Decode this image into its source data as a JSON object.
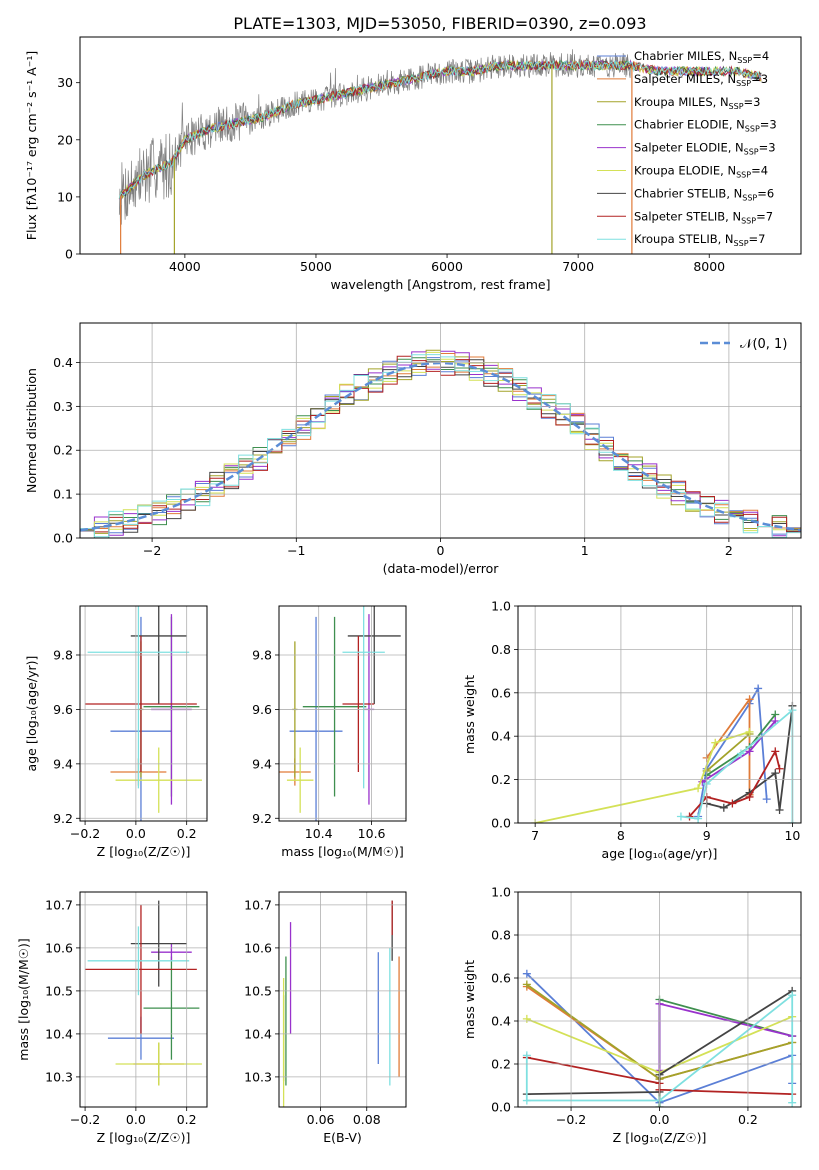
{
  "figure": {
    "title": "PLATE=1303, MJD=53050, FIBERID=0390, z=0.093"
  },
  "models": [
    {
      "name": "Chabrier MILES",
      "nssp": "4",
      "color": "#5b7fd6"
    },
    {
      "name": "Salpeter MILES",
      "nssp": "3",
      "color": "#e07b39"
    },
    {
      "name": "Kroupa MILES",
      "nssp": "3",
      "color": "#a3a32a"
    },
    {
      "name": "Chabrier ELODIE",
      "nssp": "3",
      "color": "#3f8f4f"
    },
    {
      "name": "Salpeter ELODIE",
      "nssp": "3",
      "color": "#9932cc"
    },
    {
      "name": "Kroupa ELODIE",
      "nssp": "4",
      "color": "#d4e157"
    },
    {
      "name": "Chabrier STELIB",
      "nssp": "6",
      "color": "#444444"
    },
    {
      "name": "Salpeter STELIB",
      "nssp": "7",
      "color": "#b22222"
    },
    {
      "name": "Kroupa STELIB",
      "nssp": "7",
      "color": "#7fe0e0"
    }
  ],
  "chart_data": [
    {
      "id": "spectrum",
      "type": "line",
      "xlabel": "wavelength [Angstrom, rest frame]",
      "ylabel": "Flux [fλ10⁻¹⁷ erg cm⁻² s⁻¹ A⁻¹]",
      "xlim": [
        3200,
        8700
      ],
      "ylim": [
        0,
        38
      ],
      "xticks": [
        4000,
        5000,
        6000,
        7000,
        8000
      ],
      "yticks": [
        0,
        10,
        20,
        30
      ],
      "legend": "upper-right",
      "continuum": [
        [
          3500,
          10
        ],
        [
          3600,
          12
        ],
        [
          3700,
          14
        ],
        [
          3800,
          15
        ],
        [
          3900,
          16
        ],
        [
          4000,
          20
        ],
        [
          4200,
          22
        ],
        [
          4400,
          23
        ],
        [
          4600,
          24
        ],
        [
          4800,
          26
        ],
        [
          5000,
          27
        ],
        [
          5200,
          28
        ],
        [
          5400,
          29
        ],
        [
          5600,
          30
        ],
        [
          5800,
          31
        ],
        [
          6000,
          32
        ],
        [
          6200,
          32
        ],
        [
          6400,
          33
        ],
        [
          6600,
          33
        ],
        [
          6800,
          33
        ],
        [
          7000,
          33
        ],
        [
          7200,
          33
        ],
        [
          7400,
          33
        ],
        [
          7600,
          32
        ],
        [
          7800,
          32
        ],
        [
          8000,
          32
        ],
        [
          8200,
          32
        ],
        [
          8400,
          31
        ]
      ],
      "data_xmax": 7400,
      "model_xmax": 8400,
      "dropouts": [
        [
          3510,
          "#e07b39"
        ],
        [
          3920,
          "#a3a32a"
        ],
        [
          6800,
          "#a3a32a"
        ],
        [
          7410,
          "#e07b39"
        ]
      ]
    },
    {
      "id": "residuals",
      "type": "histogram",
      "xlabel": "(data-model)/error",
      "ylabel": "Normed distribution",
      "xlim": [
        -2.5,
        2.5
      ],
      "ylim": [
        0,
        0.49
      ],
      "xticks": [
        -2,
        -1,
        0,
        1,
        2
      ],
      "yticks": [
        0.0,
        0.1,
        0.2,
        0.3,
        0.4
      ],
      "legend": "upper-right",
      "reference_label": "𝒩(0, 1)",
      "reference_color": "#5b8dd6",
      "bin_width": 0.1
    },
    {
      "id": "age-vs-Z",
      "type": "errorbar",
      "xlabel": "Z [log₁₀(Z/Z☉)]",
      "ylabel": "age  [log₁₀(age/yr)]",
      "xlim": [
        -0.22,
        0.28
      ],
      "ylim": [
        9.19,
        9.98
      ],
      "xticks": [
        -0.2,
        0.0,
        0.2
      ],
      "yticks": [
        9.2,
        9.4,
        9.6,
        9.8
      ],
      "points": [
        {
          "x": 0.02,
          "xerr": 0.12,
          "y": 9.52,
          "yerr": 0.42,
          "m": 0
        },
        {
          "x": 0.01,
          "xerr": 0.11,
          "y": 9.37,
          "yerr": 0.05,
          "m": 1
        },
        {
          "x": 0.02,
          "xerr": 0.01,
          "y": 9.6,
          "yerr": 0.25,
          "m": 2
        },
        {
          "x": 0.14,
          "xerr": 0.11,
          "y": 9.61,
          "yerr": 0.33,
          "m": 3
        },
        {
          "x": 0.14,
          "xerr": 0.08,
          "y": 9.6,
          "yerr": 0.35,
          "m": 4
        },
        {
          "x": 0.09,
          "xerr": 0.17,
          "y": 9.34,
          "yerr": 0.12,
          "m": 5
        },
        {
          "x": 0.09,
          "xerr": 0.11,
          "y": 9.87,
          "yerr": 0.25,
          "m": 6
        },
        {
          "x": 0.02,
          "xerr": 0.22,
          "y": 9.62,
          "yerr": 0.25,
          "m": 7
        },
        {
          "x": 0.01,
          "xerr": 0.2,
          "y": 9.81,
          "yerr": 0.5,
          "m": 8
        }
      ]
    },
    {
      "id": "age-vs-mass",
      "type": "errorbar",
      "xlabel": "mass [log₁₀(M/M☉)]",
      "xlim": [
        10.25,
        10.73
      ],
      "ylim": [
        9.19,
        9.98
      ],
      "xticks": [
        10.4,
        10.6
      ],
      "yticks": [
        9.2,
        9.4,
        9.6,
        9.8
      ],
      "points": [
        {
          "x": 10.39,
          "xerr": 0.1,
          "y": 9.52,
          "yerr": 0.42,
          "m": 0
        },
        {
          "x": 10.31,
          "xerr": 0.06,
          "y": 9.37,
          "yerr": 0.05,
          "m": 1
        },
        {
          "x": 10.31,
          "xerr": 0.01,
          "y": 9.6,
          "yerr": 0.25,
          "m": 2
        },
        {
          "x": 10.46,
          "xerr": 0.12,
          "y": 9.61,
          "yerr": 0.33,
          "m": 3
        },
        {
          "x": 10.59,
          "xerr": 0.02,
          "y": 9.6,
          "yerr": 0.35,
          "m": 4
        },
        {
          "x": 10.33,
          "xerr": 0.05,
          "y": 9.34,
          "yerr": 0.12,
          "m": 5
        },
        {
          "x": 10.61,
          "xerr": 0.1,
          "y": 9.87,
          "yerr": 0.25,
          "m": 6
        },
        {
          "x": 10.55,
          "xerr": 0.06,
          "y": 9.62,
          "yerr": 0.25,
          "m": 7
        },
        {
          "x": 10.57,
          "xerr": 0.08,
          "y": 9.81,
          "yerr": 0.5,
          "m": 8
        }
      ]
    },
    {
      "id": "mass-weight-vs-age",
      "type": "line",
      "xlabel": "age  [log₁₀(age/yr)]",
      "ylabel": "mass weight",
      "xlim": [
        6.8,
        10.1
      ],
      "ylim": [
        0,
        1.0
      ],
      "xticks": [
        7,
        8,
        9,
        10
      ],
      "yticks": [
        0.0,
        0.2,
        0.4,
        0.6,
        0.8,
        1.0
      ],
      "series": [
        {
          "m": 0,
          "points": [
            [
              8.9,
              0.03
            ],
            [
              9.0,
              0.25
            ],
            [
              9.5,
              0.55
            ],
            [
              9.6,
              0.62
            ],
            [
              9.7,
              0.11
            ]
          ]
        },
        {
          "m": 1,
          "points": [
            [
              9.0,
              0.3
            ],
            [
              9.5,
              0.57
            ],
            [
              9.5,
              0.13
            ]
          ]
        },
        {
          "m": 2,
          "points": [
            [
              9.0,
              0.24
            ],
            [
              9.5,
              0.41
            ]
          ]
        },
        {
          "m": 3,
          "points": [
            [
              9.0,
              0.22
            ],
            [
              9.5,
              0.35
            ],
            [
              9.8,
              0.5
            ]
          ]
        },
        {
          "m": 4,
          "points": [
            [
              8.95,
              0.19
            ],
            [
              9.5,
              0.33
            ],
            [
              9.8,
              0.47
            ]
          ]
        },
        {
          "m": 5,
          "points": [
            [
              7.0,
              0.0
            ],
            [
              8.9,
              0.16
            ],
            [
              9.1,
              0.37
            ],
            [
              9.5,
              0.42
            ]
          ]
        },
        {
          "m": 6,
          "points": [
            [
              9.0,
              0.09
            ],
            [
              9.2,
              0.07
            ],
            [
              9.5,
              0.14
            ],
            [
              9.8,
              0.23
            ],
            [
              9.85,
              0.06
            ],
            [
              10.0,
              0.54
            ]
          ]
        },
        {
          "m": 7,
          "points": [
            [
              8.8,
              0.03
            ],
            [
              9.0,
              0.12
            ],
            [
              9.3,
              0.09
            ],
            [
              9.5,
              0.12
            ],
            [
              9.8,
              0.33
            ],
            [
              9.85,
              0.25
            ]
          ]
        },
        {
          "m": 8,
          "points": [
            [
              8.7,
              0.03
            ],
            [
              8.9,
              0.02
            ],
            [
              9.0,
              0.18
            ],
            [
              9.4,
              0.32
            ],
            [
              10.0,
              0.52
            ],
            [
              10.0,
              0.0
            ]
          ]
        }
      ]
    },
    {
      "id": "mass-vs-Z",
      "type": "errorbar",
      "xlabel": "Z [log₁₀(Z/Z☉)]",
      "ylabel": "mass [log₁₀(M/M☉)]",
      "xlim": [
        -0.22,
        0.28
      ],
      "ylim": [
        10.23,
        10.73
      ],
      "xticks": [
        -0.2,
        0.0,
        0.2
      ],
      "yticks": [
        10.3,
        10.4,
        10.5,
        10.6,
        10.7
      ],
      "points": [
        {
          "x": 0.02,
          "xerr": 0.13,
          "y": 10.39,
          "yerr": 0.05,
          "m": 0
        },
        {
          "x": 0.09,
          "xerr": 0.1,
          "y": 10.33,
          "yerr": 0.05,
          "m": 1
        },
        {
          "x": 0.09,
          "xerr": 0.01,
          "y": 10.33,
          "yerr": 0.05,
          "m": 2
        },
        {
          "x": 0.14,
          "xerr": 0.11,
          "y": 10.46,
          "yerr": 0.12,
          "m": 3
        },
        {
          "x": 0.14,
          "xerr": 0.08,
          "y": 10.59,
          "yerr": 0.02,
          "m": 4
        },
        {
          "x": 0.09,
          "xerr": 0.17,
          "y": 10.33,
          "yerr": 0.05,
          "m": 5
        },
        {
          "x": 0.09,
          "xerr": 0.11,
          "y": 10.61,
          "yerr": 0.1,
          "m": 6
        },
        {
          "x": 0.02,
          "xerr": 0.22,
          "y": 10.55,
          "yerr": 0.15,
          "m": 7
        },
        {
          "x": 0.01,
          "xerr": 0.2,
          "y": 10.57,
          "yerr": 0.08,
          "m": 8
        }
      ]
    },
    {
      "id": "mass-vs-ebv",
      "type": "errorbar",
      "xlabel": "E(B-V)",
      "xlim": [
        0.042,
        0.097
      ],
      "ylim": [
        10.23,
        10.73
      ],
      "xticks": [
        0.06,
        0.08
      ],
      "yticks": [
        10.3,
        10.4,
        10.5,
        10.6,
        10.7
      ],
      "points": [
        {
          "x": 0.085,
          "xerr": 0,
          "y": 10.46,
          "yerr": 0.13,
          "m": 0
        },
        {
          "x": 0.094,
          "xerr": 0,
          "y": 10.44,
          "yerr": 0.14,
          "m": 1
        },
        {
          "x": 0.044,
          "xerr": 0,
          "y": 10.39,
          "yerr": 0.1,
          "m": 2
        },
        {
          "x": 0.045,
          "xerr": 0,
          "y": 10.43,
          "yerr": 0.15,
          "m": 3
        },
        {
          "x": 0.047,
          "xerr": 0,
          "y": 10.53,
          "yerr": 0.13,
          "m": 4
        },
        {
          "x": 0.044,
          "xerr": 0,
          "y": 10.38,
          "yerr": 0.15,
          "m": 5
        },
        {
          "x": 0.091,
          "xerr": 0,
          "y": 10.64,
          "yerr": 0.07,
          "m": 6
        },
        {
          "x": 0.091,
          "xerr": 0,
          "y": 10.67,
          "yerr": 0.04,
          "m": 7
        },
        {
          "x": 0.09,
          "xerr": 0,
          "y": 10.44,
          "yerr": 0.16,
          "m": 8
        }
      ]
    },
    {
      "id": "mass-weight-vs-Z",
      "type": "line",
      "xlabel": "Z [log₁₀(Z/Z☉)]",
      "ylabel": "mass weight",
      "xlim": [
        -0.32,
        0.32
      ],
      "ylim": [
        0,
        1.0
      ],
      "xticks": [
        -0.2,
        0.0,
        0.2
      ],
      "yticks": [
        0.0,
        0.2,
        0.4,
        0.6,
        0.8,
        1.0
      ],
      "series": [
        {
          "m": 0,
          "points": [
            [
              -0.3,
              0.62
            ],
            [
              0.0,
              0.02
            ],
            [
              0.3,
              0.24
            ],
            [
              0.3,
              0.11
            ]
          ]
        },
        {
          "m": 1,
          "points": [
            [
              -0.3,
              0.56
            ],
            [
              0.0,
              0.13
            ],
            [
              0.3,
              0.3
            ]
          ]
        },
        {
          "m": 2,
          "points": [
            [
              -0.3,
              0.57
            ],
            [
              0.0,
              0.13
            ],
            [
              0.3,
              0.3
            ]
          ]
        },
        {
          "m": 3,
          "points": [
            [
              0.0,
              0.0
            ],
            [
              0.0,
              0.5
            ],
            [
              0.3,
              0.33
            ]
          ]
        },
        {
          "m": 4,
          "points": [
            [
              0.0,
              0.17
            ],
            [
              0.0,
              0.48
            ],
            [
              0.3,
              0.33
            ]
          ]
        },
        {
          "m": 5,
          "points": [
            [
              -0.3,
              0.41
            ],
            [
              0.0,
              0.16
            ],
            [
              0.3,
              0.42
            ]
          ]
        },
        {
          "m": 6,
          "points": [
            [
              -0.3,
              0.06
            ],
            [
              0.0,
              0.07
            ],
            [
              0.0,
              0.15
            ],
            [
              0.3,
              0.54
            ]
          ]
        },
        {
          "m": 7,
          "points": [
            [
              -0.3,
              0.23
            ],
            [
              0.0,
              0.11
            ],
            [
              0.0,
              0.08
            ],
            [
              0.3,
              0.06
            ]
          ]
        },
        {
          "m": 8,
          "points": [
            [
              -0.3,
              0.24
            ],
            [
              -0.3,
              0.03
            ],
            [
              0.0,
              0.03
            ],
            [
              0.3,
              0.52
            ],
            [
              0.3,
              0.02
            ]
          ]
        }
      ]
    }
  ]
}
